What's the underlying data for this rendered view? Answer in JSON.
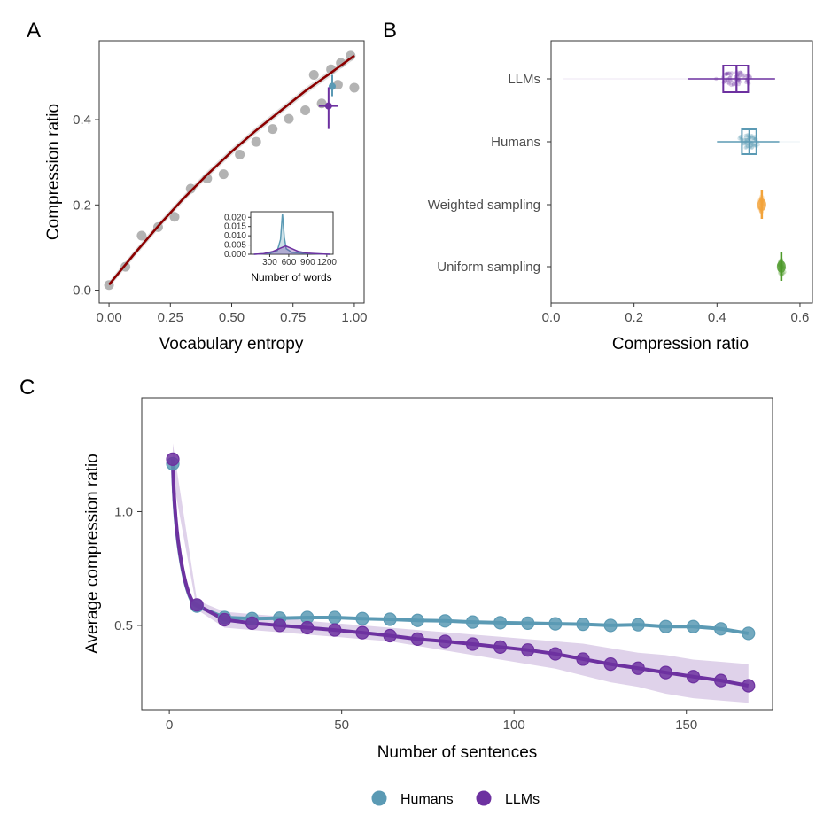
{
  "colors": {
    "humans": "#5b9ab4",
    "llms": "#6d31a0",
    "weighted": "#f2a33a",
    "uniform": "#4e9a2a",
    "fit": "#8b0000",
    "points": "#b3b3b3"
  },
  "legend": [
    {
      "label": "Humans",
      "color": "#5b9ab4"
    },
    {
      "label": "LLMs",
      "color": "#6d31a0"
    }
  ],
  "chart_data": [
    {
      "panel": "A",
      "type": "scatter",
      "xlabel": "Vocabulary entropy",
      "ylabel": "Compression ratio",
      "xlim": [
        -0.04,
        1.04
      ],
      "ylim": [
        -0.03,
        0.585
      ],
      "xticks": [
        "0.00",
        "0.25",
        "0.50",
        "0.75",
        "1.00"
      ],
      "yticks": [
        "0.0",
        "0.2",
        "0.4"
      ],
      "points": {
        "x": [
          0.0,
          0.067,
          0.133,
          0.2,
          0.267,
          0.333,
          0.4,
          0.467,
          0.533,
          0.6,
          0.667,
          0.733,
          0.8,
          0.867,
          0.933,
          1.0
        ],
        "y": [
          0.012,
          0.055,
          0.128,
          0.148,
          0.172,
          0.238,
          0.262,
          0.272,
          0.318,
          0.348,
          0.378,
          0.402,
          0.422,
          0.438,
          0.482,
          0.475
        ]
      },
      "points_extra": {
        "x": [
          0.835,
          0.905,
          0.945,
          0.985
        ],
        "y": [
          0.505,
          0.518,
          0.533,
          0.55
        ]
      },
      "fit": {
        "x": [
          0.0,
          0.1,
          0.2,
          0.3,
          0.4,
          0.5,
          0.6,
          0.7,
          0.8,
          0.9,
          1.0
        ],
        "y": [
          0.013,
          0.083,
          0.15,
          0.213,
          0.271,
          0.325,
          0.375,
          0.421,
          0.467,
          0.508,
          0.55
        ]
      },
      "group_markers": [
        {
          "name": "Humans",
          "x": 0.91,
          "y": 0.478,
          "y_err": [
            0.455,
            0.505
          ]
        },
        {
          "name": "LLMs",
          "x": 0.895,
          "y": 0.432,
          "y_err": [
            0.378,
            0.476
          ],
          "x_err": [
            0.855,
            0.935
          ]
        }
      ],
      "inset": {
        "xlabel": "Number of words",
        "xticks": [
          "300",
          "600",
          "900",
          "1200"
        ],
        "yticks": [
          "0.000",
          "0.005",
          "0.010",
          "0.015",
          "0.020"
        ],
        "series": [
          {
            "name": "Humans",
            "x": [
              50,
              300,
              420,
              470,
              500,
              530,
              560,
              650,
              900,
              1250
            ],
            "y": [
              0,
              0.0005,
              0.002,
              0.008,
              0.022,
              0.009,
              0.003,
              0.001,
              0.0004,
              0
            ]
          },
          {
            "name": "LLMs",
            "x": [
              50,
              200,
              350,
              450,
              550,
              650,
              750,
              900,
              1100,
              1250
            ],
            "y": [
              0,
              0.0003,
              0.0015,
              0.003,
              0.0045,
              0.003,
              0.0015,
              0.0006,
              0.0002,
              0
            ]
          }
        ]
      }
    },
    {
      "panel": "B",
      "type": "box",
      "xlabel": "Compression ratio",
      "xlim": [
        0,
        0.63
      ],
      "xticks": [
        "0.0",
        "0.2",
        "0.4",
        "0.6"
      ],
      "categories": [
        "LLMs",
        "Humans",
        "Weighted sampling",
        "Uniform sampling"
      ],
      "boxes": [
        {
          "name": "LLMs",
          "min": 0.33,
          "q1": 0.415,
          "median": 0.447,
          "q3": 0.475,
          "max": 0.54,
          "outlier_min": 0.03
        },
        {
          "name": "Humans",
          "min": 0.4,
          "q1": 0.46,
          "median": 0.478,
          "q3": 0.495,
          "max": 0.55,
          "outlier_max": 0.6
        },
        {
          "name": "Weighted sampling",
          "min": 0.5,
          "q1": 0.503,
          "median": 0.508,
          "q3": 0.513,
          "max": 0.52
        },
        {
          "name": "Uniform sampling",
          "min": 0.545,
          "q1": 0.55,
          "median": 0.555,
          "q3": 0.56,
          "max": 0.565
        }
      ]
    },
    {
      "panel": "C",
      "type": "line",
      "xlabel": "Number of sentences",
      "ylabel": "Average compression ratio",
      "xlim": [
        -8,
        175
      ],
      "ylim": [
        0.13,
        1.5
      ],
      "xticks": [
        "0",
        "50",
        "100",
        "150"
      ],
      "yticks": [
        "0.5",
        "1.0"
      ],
      "series": [
        {
          "name": "Humans",
          "x": [
            1,
            8,
            16,
            24,
            32,
            40,
            48,
            56,
            64,
            72,
            80,
            88,
            96,
            104,
            112,
            120,
            128,
            136,
            144,
            152,
            160,
            168
          ],
          "y": [
            1.21,
            0.585,
            0.535,
            0.53,
            0.532,
            0.535,
            0.535,
            0.53,
            0.527,
            0.522,
            0.52,
            0.515,
            0.512,
            0.51,
            0.507,
            0.505,
            0.5,
            0.503,
            0.495,
            0.495,
            0.485,
            0.465
          ]
        },
        {
          "name": "LLMs",
          "x": [
            1,
            8,
            16,
            24,
            32,
            40,
            48,
            56,
            64,
            72,
            80,
            88,
            96,
            104,
            112,
            120,
            128,
            136,
            144,
            152,
            160,
            168
          ],
          "y": [
            1.23,
            0.59,
            0.525,
            0.51,
            0.5,
            0.49,
            0.48,
            0.468,
            0.455,
            0.44,
            0.43,
            0.418,
            0.405,
            0.392,
            0.375,
            0.352,
            0.33,
            0.312,
            0.293,
            0.275,
            0.258,
            0.235
          ],
          "band_lower": [
            1.15,
            0.57,
            0.49,
            0.48,
            0.47,
            0.46,
            0.45,
            0.44,
            0.43,
            0.41,
            0.39,
            0.37,
            0.35,
            0.33,
            0.31,
            0.28,
            0.25,
            0.23,
            0.2,
            0.18,
            0.17,
            0.16
          ],
          "band_upper": [
            1.3,
            0.61,
            0.56,
            0.55,
            0.54,
            0.52,
            0.51,
            0.5,
            0.49,
            0.48,
            0.47,
            0.46,
            0.45,
            0.44,
            0.43,
            0.42,
            0.4,
            0.38,
            0.37,
            0.35,
            0.34,
            0.33
          ]
        }
      ]
    }
  ],
  "panel_letters": [
    "A",
    "B",
    "C"
  ]
}
